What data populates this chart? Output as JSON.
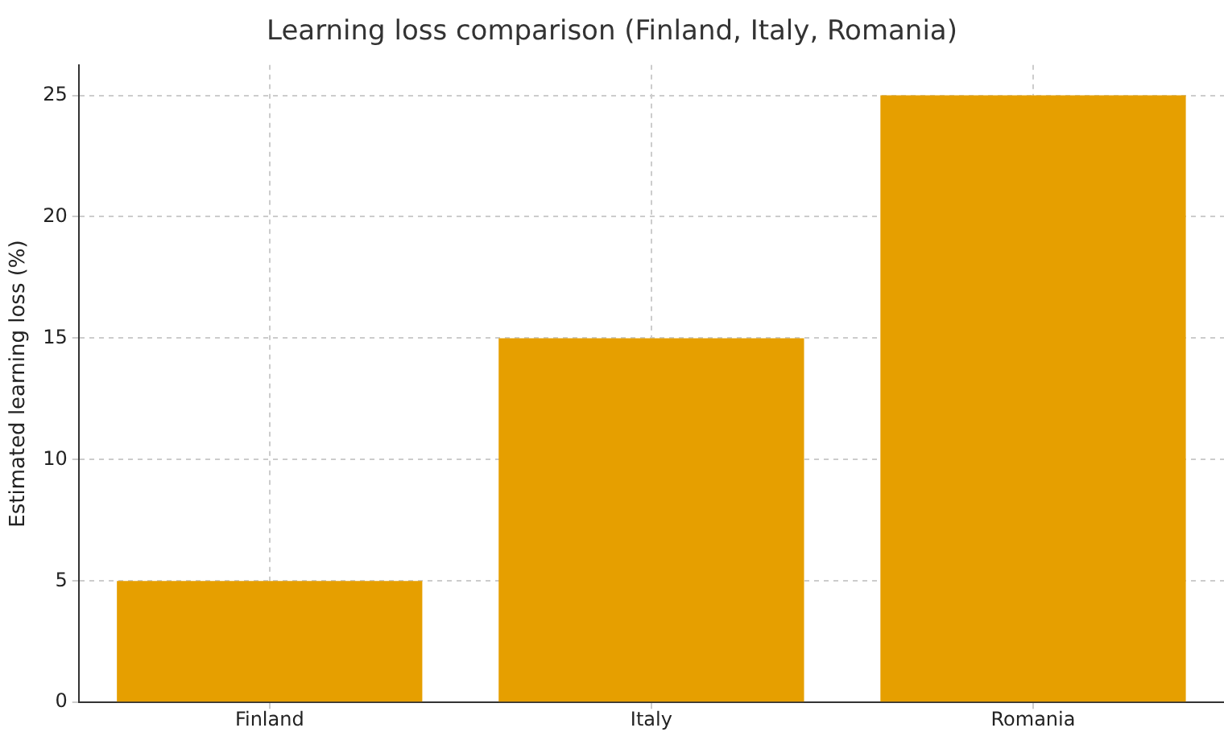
{
  "chart_data": {
    "type": "bar",
    "title": "Learning loss comparison (Finland, Italy, Romania)",
    "ylabel": "Estimated learning loss (%)",
    "categories": [
      "Finland",
      "Italy",
      "Romania"
    ],
    "values": [
      5,
      15,
      25
    ],
    "color": "#e69f00",
    "ylim": [
      0,
      26.25
    ],
    "yticks": [
      0,
      5,
      10,
      15,
      20,
      25
    ],
    "grid": true
  }
}
